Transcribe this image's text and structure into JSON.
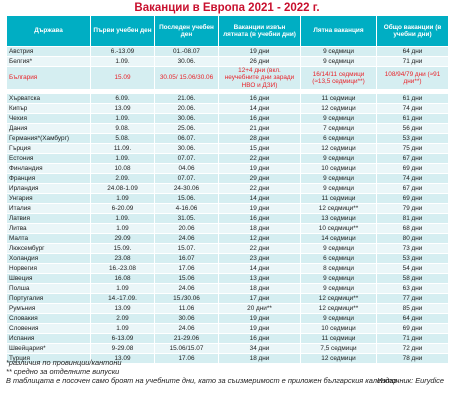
{
  "title": "Ваканции в Европа 2021 - 2022 г.",
  "columns": [
    "Държава",
    "Първи учебен ден",
    "Последен учебен ден",
    "Ваканции извън лятната (в учебни дни)",
    "Лятна ваканция",
    "Общо ваканции (в учебни дни)"
  ],
  "highlight_color": "#e8242b",
  "header_color": "#00aec3",
  "rows_a": [
    [
      "Австрия",
      "6.-13.09",
      "01.-08.07",
      "19 дни",
      "9 седмици",
      "64 дни"
    ],
    [
      "Белгия*",
      "1.09.",
      "30.06.",
      "26 дни",
      "9 седмици",
      "71 дни"
    ]
  ],
  "bulgaria": [
    "България",
    "15.09",
    "30.05/ 15.06/30.06",
    "12+4 дни (вкл. неучебните дни заради НВО и ДЗИ)",
    "16/14/11 седмици (≈13,5 седмици**)",
    "108/94/79 дни (≈91 дни**)"
  ],
  "rows_b": [
    [
      "Хърватска",
      "6.09.",
      "21.06.",
      "16 дни",
      "11 седмици",
      "61 дни"
    ],
    [
      "Кипър",
      "13.09",
      "20.06.",
      "14 дни",
      "12 седмици",
      "74 дни"
    ],
    [
      "Чехия",
      "1.09.",
      "30.06.",
      "16 дни",
      "9 седмици",
      "61 дни"
    ],
    [
      "Дания",
      "9.08.",
      "25.06.",
      "21 дни",
      "7 седмици",
      "56 дни"
    ],
    [
      "Германия*(Хамбург)",
      "5.08.",
      "06.07.",
      "28 дни",
      "6 седмици",
      "53 дни"
    ],
    [
      "Гърция",
      "11.09.",
      "30.06.",
      "15 дни",
      "12 седмици",
      "75 дни"
    ],
    [
      "Естония",
      "1.09.",
      "07.07.",
      "22 дни",
      "9 седмици",
      "67 дни"
    ],
    [
      "Финландия",
      "10.08",
      "04.06",
      "19 дни",
      "10 седмици",
      "69 дни"
    ],
    [
      "Франция",
      "2.09.",
      "07.07.",
      "29 дни",
      "9 седмици",
      "74 дни"
    ],
    [
      "Ирландия",
      "24.08-1.09",
      "24-30.06",
      "22 дни",
      "9 седмици",
      "67 дни"
    ],
    [
      "Унгария",
      "1.09",
      "15.06.",
      "14 дни",
      "11 седмици",
      "69 дни"
    ],
    [
      "Италия",
      "6-20.09",
      "4-16.06",
      "19 дни",
      "12 седмици**",
      "79 дни"
    ],
    [
      "Латвия",
      "1.09.",
      "31.05.",
      "16 дни",
      "13 седмици",
      "81 дни"
    ],
    [
      "Литва",
      "1.09",
      "20.06",
      "18 дни",
      "10 седмици**",
      "68 дни"
    ],
    [
      "Малта",
      "29.09",
      "24.06",
      "12 дни",
      "14 седмици",
      "80 дни"
    ],
    [
      "Люксембург",
      "15.09.",
      "15.07.",
      "22 дни",
      "9 седмици",
      "73 дни"
    ],
    [
      "Холандия",
      "23.08",
      "16.07",
      "23 дни",
      "6 седмици",
      "53 дни"
    ],
    [
      "Норвегия",
      "16.-23.08",
      "17.06",
      "14 дни",
      "8 седмици",
      "54 дни"
    ],
    [
      "Швеция",
      "16.08",
      "15.06",
      "13 дни",
      "9 седмици",
      "58 дни"
    ],
    [
      "Полша",
      "1.09",
      "24.06",
      "18 дни",
      "9 седмици",
      "63 дни"
    ],
    [
      "Португалия",
      "14.-17.09.",
      "15./30.06",
      "17 дни",
      "12 седмици**",
      "77 дни"
    ],
    [
      "Румъния",
      "13.09",
      "11.06",
      "20 дни**",
      "12 седмици**",
      "85 дни"
    ],
    [
      "Словакия",
      "2.09",
      "30.06",
      "19 дни",
      "9 седмици",
      "64 дни"
    ],
    [
      "Словения",
      "1.09",
      "24.06",
      "19 дни",
      "10 седмици",
      "69 дни"
    ],
    [
      "Испания",
      "6-13.09",
      "21-29.06",
      "16 дни",
      "11 седмици",
      "71 дни"
    ],
    [
      "Швейцария*",
      "9-29.08",
      "15.06/15.07",
      "34 дни",
      "7,5 седмици",
      "72 дни"
    ],
    [
      "Турция",
      "13.09",
      "17.06",
      "18 дни",
      "12 седмици",
      "78 дни"
    ]
  ],
  "notes": {
    "n1": "*различия по провинции/кантони",
    "n2": "** средно за отделните випуски",
    "n3": "В таблицата е посочен само броят на учебните дни, като за съизмеримост е приложен българския календар.",
    "source": "Източник: Eurydice"
  }
}
